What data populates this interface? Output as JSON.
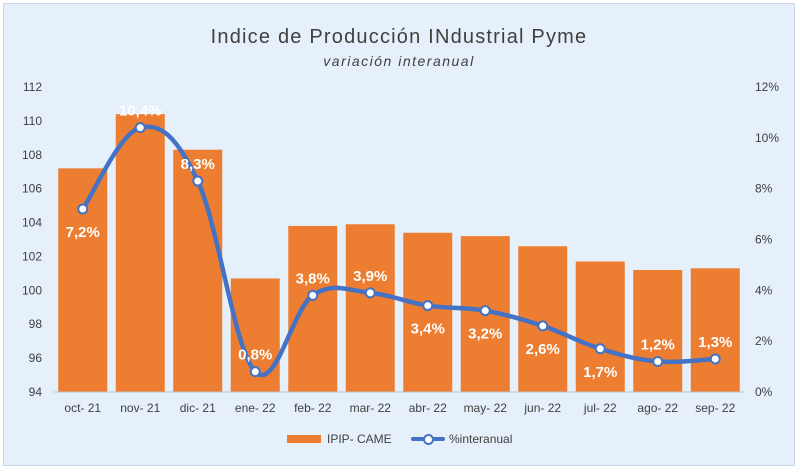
{
  "chart_data": {
    "type": "bar",
    "title": "Indice de Producción INdustrial Pyme",
    "subtitle": "variación interanual",
    "categories": [
      "oct- 21",
      "nov- 21",
      "dic- 21",
      "ene- 22",
      "feb- 22",
      "mar- 22",
      "abr- 22",
      "may- 22",
      "jun- 22",
      "jul- 22",
      "ago- 22",
      "sep- 22"
    ],
    "series": [
      {
        "name": "IPIP- CAME",
        "type": "bar",
        "axis": "left",
        "color": "#ed7d31",
        "values": [
          107.2,
          110.4,
          108.3,
          100.7,
          103.8,
          103.9,
          103.4,
          103.2,
          102.6,
          101.7,
          101.2,
          101.3
        ]
      },
      {
        "name": "%interanual",
        "type": "line",
        "axis": "right",
        "color": "#4472c4",
        "values": [
          7.2,
          10.4,
          8.3,
          0.8,
          3.8,
          3.9,
          3.4,
          3.2,
          2.6,
          1.7,
          1.2,
          1.3
        ],
        "data_labels": [
          "7,2%",
          "10,4%",
          "8,3%",
          "0,8%",
          "3,8%",
          "3,9%",
          "3,4%",
          "3,2%",
          "2,6%",
          "1,7%",
          "1,2%",
          "1,3%"
        ]
      }
    ],
    "y_left": {
      "ylim": [
        94,
        112
      ],
      "ticks": [
        "94",
        "96",
        "98",
        "100",
        "102",
        "104",
        "106",
        "108",
        "110",
        "112"
      ]
    },
    "y_right": {
      "ylim": [
        0,
        12
      ],
      "ticks": [
        "0%",
        "2%",
        "4%",
        "6%",
        "8%",
        "10%",
        "12%"
      ]
    },
    "legend": "bottom",
    "grid": false
  }
}
